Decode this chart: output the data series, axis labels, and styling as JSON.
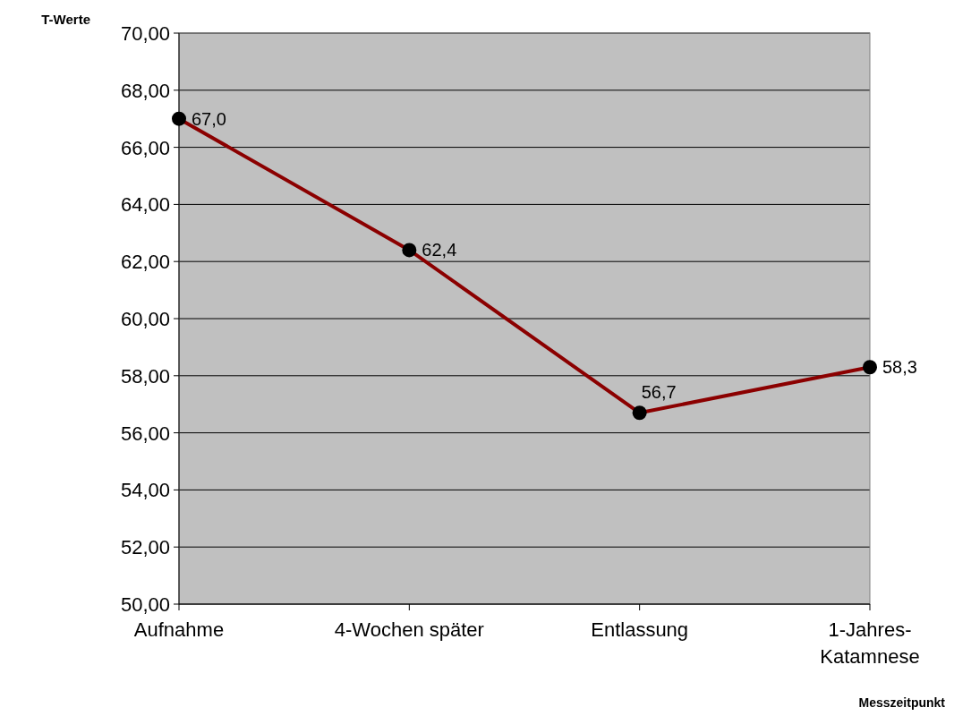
{
  "chart_data": {
    "type": "line",
    "ylabel": "T-Werte",
    "xlabel": "Messzeitpunkt",
    "categories": [
      "Aufnahme",
      "4-Wochen später",
      "Entlassung",
      "1-Jahres-Katamnese"
    ],
    "series": [
      {
        "color": "#8b0000",
        "values": [
          67.0,
          62.4,
          56.7,
          58.3
        ],
        "value_labels": [
          "67,0",
          "62,4",
          "56,7",
          "58,3"
        ]
      }
    ],
    "ylim": [
      50,
      70
    ],
    "yticks": [
      {
        "value": 50,
        "label": "50,00"
      },
      {
        "value": 52,
        "label": "52,00"
      },
      {
        "value": 54,
        "label": "54,00"
      },
      {
        "value": 56,
        "label": "56,00"
      },
      {
        "value": 58,
        "label": "58,00"
      },
      {
        "value": 60,
        "label": "60,00"
      },
      {
        "value": 62,
        "label": "62,00"
      },
      {
        "value": 64,
        "label": "64,00"
      },
      {
        "value": 66,
        "label": "66,00"
      },
      {
        "value": 68,
        "label": "68,00"
      },
      {
        "value": 70,
        "label": "70,00"
      }
    ],
    "grid": "y",
    "marker": "circle",
    "line_style": "solid"
  }
}
